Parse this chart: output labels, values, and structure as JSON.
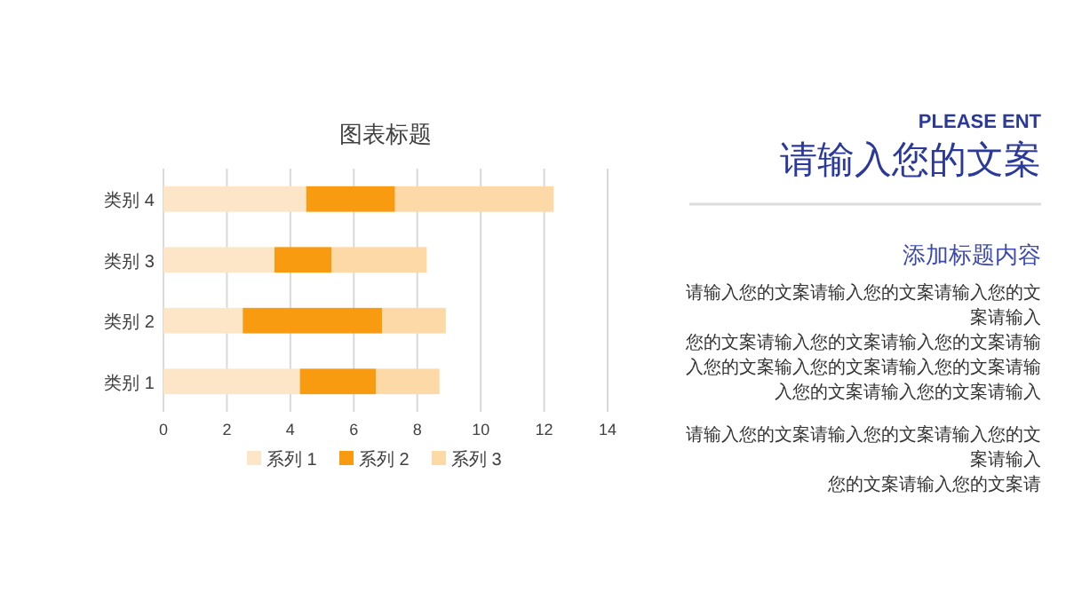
{
  "chart_data": {
    "type": "bar",
    "orientation": "horizontal",
    "stacked": true,
    "title": "图表标题",
    "categories": [
      "类别 4",
      "类别 3",
      "类别 2",
      "类别 1"
    ],
    "series": [
      {
        "name": "系列 1",
        "color": "#fde6c8",
        "values": [
          4.5,
          3.5,
          2.5,
          4.3
        ]
      },
      {
        "name": "系列 2",
        "color": "#f99b10",
        "values": [
          2.8,
          1.8,
          4.4,
          2.4
        ]
      },
      {
        "name": "系列 3",
        "color": "#fdd9a8",
        "values": [
          5,
          3,
          2,
          2
        ]
      }
    ],
    "xlim": [
      0,
      14
    ],
    "xticks": [
      0,
      2,
      4,
      6,
      8,
      10,
      12,
      14
    ],
    "grid": "x",
    "legend": "bottom",
    "annotations": [
      "PLEASE ENT",
      "请输入您的文案",
      "添加标题内容",
      "请输入您的文案请输入您的文案请输入您的文",
      "案请输入",
      "您的文案请输入您的文案请输入您的文案请输",
      "入您的文案输入您的文案请输入您的文案请输",
      "入您的文案请输入您的文案请输入",
      "请输入您的文案请输入您的文案请输入您的文",
      "案请输入",
      "您的文案请输入您的文案请"
    ]
  }
}
